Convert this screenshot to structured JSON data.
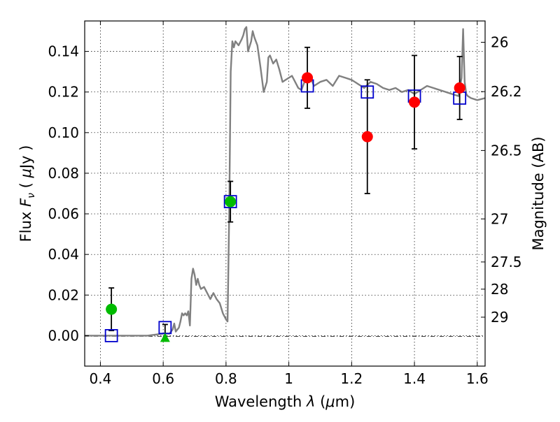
{
  "chart_data": {
    "type": "scatter",
    "xlabel": "Wavelength  λ (μm)",
    "ylabel": "Flux  F_ν  ( μJy )",
    "ylabel_parts": {
      "pre": "Flux ",
      "sym": "F",
      "sub": "ν",
      "post": "  ( ",
      "mu": "μ",
      "unit": "Jy )"
    },
    "xlabel_parts": {
      "pre": "Wavelength  ",
      "sym": "λ",
      "post": " (",
      "mu": "μ",
      "unit": "m)"
    },
    "y2label": "Magnitude (AB)",
    "xlim": [
      0.35,
      1.625
    ],
    "ylim": [
      -0.015,
      0.155
    ],
    "grid": true,
    "x_ticks": [
      {
        "v": 0.4,
        "label": "0.4"
      },
      {
        "v": 0.6,
        "label": "0.6"
      },
      {
        "v": 0.8,
        "label": "0.8"
      },
      {
        "v": 1.0,
        "label": "1"
      },
      {
        "v": 1.2,
        "label": "1.2"
      },
      {
        "v": 1.4,
        "label": "1.4"
      },
      {
        "v": 1.6,
        "label": "1.6"
      }
    ],
    "y_ticks": [
      {
        "v": 0.0,
        "label": "0.00"
      },
      {
        "v": 0.02,
        "label": "0.02"
      },
      {
        "v": 0.04,
        "label": "0.04"
      },
      {
        "v": 0.06,
        "label": "0.06"
      },
      {
        "v": 0.08,
        "label": "0.08"
      },
      {
        "v": 0.1,
        "label": "0.10"
      },
      {
        "v": 0.12,
        "label": "0.12"
      },
      {
        "v": 0.14,
        "label": "0.14"
      }
    ],
    "mag_ticks": [
      {
        "flux": 0.1445,
        "label": "26"
      },
      {
        "flux": 0.1202,
        "label": "26.2"
      },
      {
        "flux": 0.0912,
        "label": "26.5"
      },
      {
        "flux": 0.0575,
        "label": "27"
      },
      {
        "flux": 0.0363,
        "label": "27.5"
      },
      {
        "flux": 0.0229,
        "label": "28"
      },
      {
        "flux": 0.0091,
        "label": "29"
      }
    ],
    "model_spectrum": {
      "color": "#808080",
      "x": [
        0.35,
        0.55,
        0.6,
        0.62,
        0.63,
        0.635,
        0.64,
        0.65,
        0.655,
        0.66,
        0.665,
        0.67,
        0.675,
        0.68,
        0.685,
        0.69,
        0.695,
        0.7,
        0.705,
        0.71,
        0.715,
        0.72,
        0.73,
        0.74,
        0.75,
        0.76,
        0.77,
        0.78,
        0.79,
        0.8,
        0.805,
        0.81,
        0.815,
        0.82,
        0.825,
        0.83,
        0.84,
        0.85,
        0.855,
        0.86,
        0.865,
        0.87,
        0.88,
        0.885,
        0.89,
        0.895,
        0.9,
        0.91,
        0.92,
        0.93,
        0.935,
        0.94,
        0.95,
        0.96,
        0.97,
        0.98,
        0.99,
        1.0,
        1.01,
        1.02,
        1.03,
        1.04,
        1.05,
        1.06,
        1.07,
        1.08,
        1.09,
        1.1,
        1.12,
        1.14,
        1.16,
        1.18,
        1.2,
        1.22,
        1.24,
        1.26,
        1.28,
        1.3,
        1.32,
        1.34,
        1.36,
        1.38,
        1.4,
        1.42,
        1.44,
        1.46,
        1.48,
        1.5,
        1.52,
        1.54,
        1.55,
        1.555,
        1.56,
        1.565,
        1.57,
        1.58,
        1.6,
        1.625
      ],
      "y": [
        0.0,
        0.0,
        0.001,
        0.001,
        0.003,
        0.006,
        0.002,
        0.004,
        0.007,
        0.011,
        0.01,
        0.011,
        0.01,
        0.012,
        0.005,
        0.028,
        0.033,
        0.03,
        0.025,
        0.028,
        0.025,
        0.023,
        0.024,
        0.021,
        0.018,
        0.021,
        0.018,
        0.016,
        0.011,
        0.008,
        0.007,
        0.059,
        0.13,
        0.145,
        0.142,
        0.145,
        0.143,
        0.146,
        0.148,
        0.151,
        0.152,
        0.14,
        0.145,
        0.15,
        0.147,
        0.145,
        0.143,
        0.132,
        0.12,
        0.125,
        0.137,
        0.138,
        0.134,
        0.136,
        0.131,
        0.125,
        0.126,
        0.127,
        0.128,
        0.125,
        0.122,
        0.121,
        0.125,
        0.126,
        0.127,
        0.123,
        0.124,
        0.125,
        0.126,
        0.123,
        0.128,
        0.127,
        0.126,
        0.124,
        0.122,
        0.125,
        0.124,
        0.122,
        0.121,
        0.122,
        0.12,
        0.121,
        0.119,
        0.121,
        0.123,
        0.122,
        0.121,
        0.12,
        0.119,
        0.118,
        0.127,
        0.151,
        0.125,
        0.119,
        0.118,
        0.117,
        0.116,
        0.117
      ]
    },
    "series": [
      {
        "marker": "square",
        "color": "#0000cc",
        "points": [
          {
            "x": 0.435,
            "y": 0.0
          },
          {
            "x": 0.606,
            "y": 0.004
          },
          {
            "x": 0.814,
            "y": 0.066
          },
          {
            "x": 1.059,
            "y": 0.123
          },
          {
            "x": 1.25,
            "y": 0.12
          },
          {
            "x": 1.4,
            "y": 0.118
          },
          {
            "x": 1.544,
            "y": 0.117
          }
        ]
      },
      {
        "marker": "circle",
        "color": "#00bb00",
        "points": [
          {
            "x": 0.435,
            "y": 0.013,
            "yerr": [
              0.0105,
              0.0105
            ]
          },
          {
            "x": 0.814,
            "y": 0.066,
            "yerr": [
              0.01,
              0.01
            ]
          }
        ]
      },
      {
        "marker": "triangle",
        "color": "#00bb00",
        "points": [
          {
            "x": 0.606,
            "y": -0.001,
            "yerr": [
              0.0,
              0.0065
            ]
          }
        ]
      },
      {
        "marker": "circle",
        "color": "#ff0000",
        "points": [
          {
            "x": 1.059,
            "y": 0.127,
            "yerr": [
              0.015,
              0.015
            ]
          },
          {
            "x": 1.25,
            "y": 0.098,
            "yerr": [
              0.028,
              0.028
            ]
          },
          {
            "x": 1.4,
            "y": 0.115,
            "yerr": [
              0.023,
              0.023
            ]
          },
          {
            "x": 1.544,
            "y": 0.122,
            "yerr": [
              0.0155,
              0.0155
            ]
          }
        ]
      }
    ]
  }
}
